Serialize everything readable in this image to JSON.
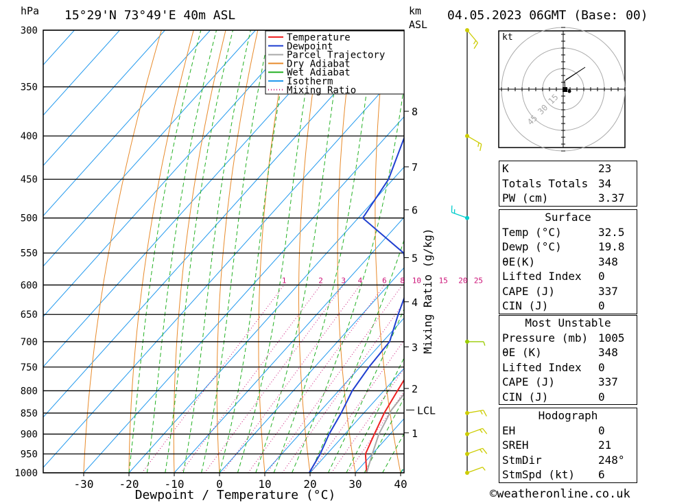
{
  "header": {
    "hpa_label": "hPa",
    "location": "15°29'N  73°49'E  40m  ASL",
    "km_label": "km",
    "asl_label": "ASL",
    "datetime": "04.05.2023  06GMT  (Base: 00)"
  },
  "colors": {
    "temperature": "#ee2222",
    "dewpoint": "#1f3fd0",
    "parcel": "#a8a8a8",
    "dry_adiabat": "#e88a2a",
    "wet_adiabat": "#22b022",
    "isotherm": "#2299ee",
    "mixing_ratio": "#cc1177"
  },
  "chart_data": {
    "type": "line",
    "title": "15°29'N  73°49'E  40m  ASL",
    "xlabel": "Dewpoint / Temperature (°C)",
    "ylabel": "hPa",
    "right_label": "Mixing Ratio (g/kg)",
    "xlim": [
      -40,
      40
    ],
    "ylim": [
      1000,
      300
    ],
    "pressure_ticks": [
      "300",
      "350",
      "400",
      "450",
      "500",
      "550",
      "600",
      "650",
      "700",
      "750",
      "800",
      "850",
      "900",
      "950",
      "1000"
    ],
    "temp_ticks": [
      "-30",
      "-20",
      "-10",
      "0",
      "10",
      "20",
      "30",
      "40"
    ],
    "km_ticks": [
      {
        "label": "8",
        "p": 374
      },
      {
        "label": "7",
        "p": 435
      },
      {
        "label": "6",
        "p": 489
      },
      {
        "label": "5",
        "p": 557
      },
      {
        "label": "4",
        "p": 628
      },
      {
        "label": "3",
        "p": 710
      },
      {
        "label": "2",
        "p": 795
      },
      {
        "label": "1",
        "p": 897
      }
    ],
    "lcl": {
      "label": "LCL",
      "p": 843
    },
    "mixing_ratio_labels": [
      "1",
      "2",
      "3",
      "4",
      "6",
      "8",
      "10",
      "15",
      "20",
      "25"
    ],
    "legend": [
      "Temperature",
      "Dewpoint",
      "Parcel Trajectory",
      "Dry Adiabat",
      "Wet Adiabat",
      "Isotherm",
      "Mixing Ratio"
    ],
    "series": [
      {
        "name": "Temperature",
        "points": [
          [
            1000,
            32.5
          ],
          [
            950,
            28.5
          ],
          [
            900,
            26.5
          ],
          [
            850,
            24.5
          ],
          [
            800,
            23
          ],
          [
            750,
            21.5
          ],
          [
            700,
            20.5
          ],
          [
            650,
            19.5
          ],
          [
            600,
            18.5
          ],
          [
            550,
            17
          ],
          [
            500,
            16
          ],
          [
            450,
            14
          ],
          [
            400,
            11
          ],
          [
            360,
            9
          ]
        ]
      },
      {
        "name": "Dewpoint",
        "points": [
          [
            1000,
            19.8
          ],
          [
            950,
            18.5
          ],
          [
            900,
            16.5
          ],
          [
            850,
            15
          ],
          [
            800,
            13
          ],
          [
            750,
            12
          ],
          [
            700,
            11.5
          ],
          [
            650,
            8
          ],
          [
            600,
            4.5
          ],
          [
            550,
            -3
          ],
          [
            500,
            -19
          ],
          [
            450,
            -21
          ],
          [
            400,
            -26
          ],
          [
            350,
            -31
          ],
          [
            300,
            -40
          ]
        ]
      },
      {
        "name": "Parcel Trajectory",
        "points": [
          [
            1000,
            32.5
          ],
          [
            950,
            30
          ],
          [
            900,
            27.5
          ],
          [
            843,
            25.5
          ],
          [
            800,
            25
          ],
          [
            750,
            24
          ],
          [
            700,
            22.5
          ],
          [
            650,
            21
          ],
          [
            600,
            19.5
          ],
          [
            550,
            17.5
          ],
          [
            500,
            15.5
          ],
          [
            450,
            13
          ],
          [
            400,
            9.5
          ],
          [
            360,
            6
          ]
        ]
      }
    ]
  },
  "wind_barbs": [
    {
      "p": 1000,
      "dir": 250,
      "speed": 6
    },
    {
      "p": 950,
      "dir": 250,
      "speed": 8
    },
    {
      "p": 900,
      "dir": 250,
      "speed": 10
    },
    {
      "p": 850,
      "dir": 260,
      "speed": 10
    },
    {
      "p": 700,
      "dir": 270,
      "speed": 5
    },
    {
      "p": 500,
      "dir": 110,
      "speed": 10
    },
    {
      "p": 400,
      "dir": 300,
      "speed": 8
    },
    {
      "p": 300,
      "dir": 320,
      "speed": 10
    }
  ],
  "hodograph": {
    "unit_label": "kt",
    "ring_labels": [
      "15",
      "30",
      "45"
    ]
  },
  "indices": {
    "rows": [
      {
        "k": "K",
        "v": "23"
      },
      {
        "k": "Totals Totals",
        "v": "34"
      },
      {
        "k": "PW (cm)",
        "v": "3.37"
      }
    ]
  },
  "surface": {
    "title": "Surface",
    "rows": [
      {
        "k": "Temp (°C)",
        "v": "32.5"
      },
      {
        "k": "Dewp (°C)",
        "v": "19.8"
      },
      {
        "k": "θE(K)",
        "v": "348"
      },
      {
        "k": "Lifted Index",
        "v": "0"
      },
      {
        "k": "CAPE (J)",
        "v": "337"
      },
      {
        "k": "CIN (J)",
        "v": "0"
      }
    ]
  },
  "most_unstable": {
    "title": "Most Unstable",
    "rows": [
      {
        "k": "Pressure (mb)",
        "v": "1005"
      },
      {
        "k": "θE (K)",
        "v": "348"
      },
      {
        "k": "Lifted Index",
        "v": "0"
      },
      {
        "k": "CAPE (J)",
        "v": "337"
      },
      {
        "k": "CIN (J)",
        "v": "0"
      }
    ]
  },
  "hodograph_table": {
    "title": "Hodograph",
    "rows": [
      {
        "k": "EH",
        "v": "0"
      },
      {
        "k": "SREH",
        "v": "21"
      },
      {
        "k": "StmDir",
        "v": "248°"
      },
      {
        "k": "StmSpd (kt)",
        "v": "6"
      }
    ]
  },
  "footer": "©weatheronline.co.uk"
}
